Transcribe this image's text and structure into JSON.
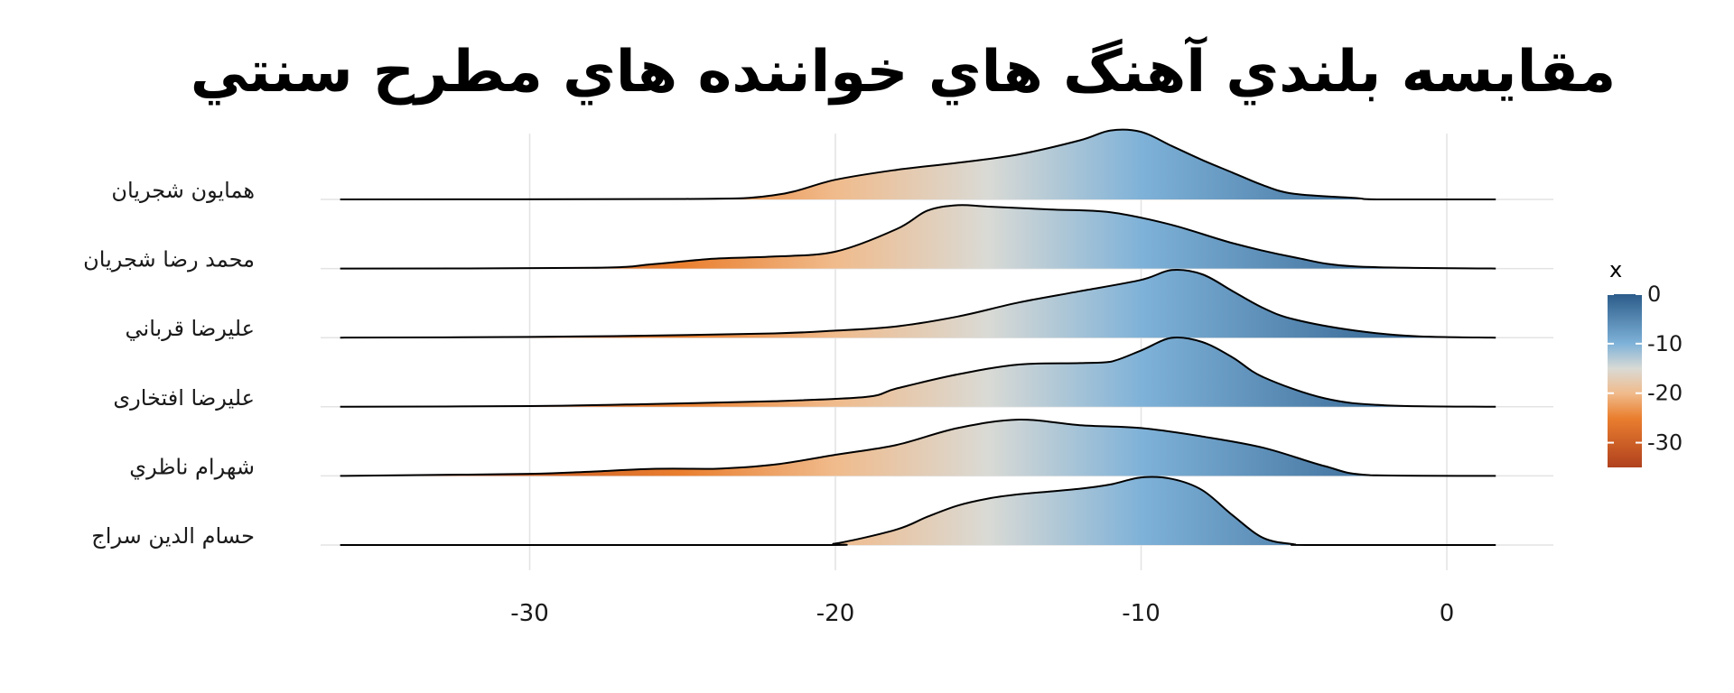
{
  "chart_data": {
    "type": "ridgeline",
    "title": "مقايسه بلندي آهنگ هاي خواننده هاي مطرح سنتي",
    "xlabel": "",
    "ylabel": "",
    "xlim": [
      -37,
      4
    ],
    "x_ticks": [
      -30,
      -20,
      -10,
      0
    ],
    "x_tick_labels": [
      "-30",
      "-20",
      "-10",
      "0"
    ],
    "grid": true,
    "legend": {
      "title": "x",
      "position": "right",
      "ticks": [
        0,
        -10,
        -20,
        -30
      ],
      "tick_labels": [
        "0",
        "-10",
        "-20",
        "-30"
      ],
      "range": [
        -35,
        0
      ],
      "colors": [
        {
          "value": 0,
          "color": "#2b5c8a"
        },
        {
          "value": -10,
          "color": "#7fb2d8"
        },
        {
          "value": -15,
          "color": "#d9dad5"
        },
        {
          "value": -20,
          "color": "#f0bb8c"
        },
        {
          "value": -25,
          "color": "#ea7f2f"
        },
        {
          "value": -35,
          "color": "#b0411e"
        }
      ]
    },
    "series": [
      {
        "name": "همايون شجريان",
        "x": [
          -36.2,
          -25,
          -22,
          -20,
          -18,
          -16,
          -14,
          -12,
          -11,
          -10,
          -9,
          -8,
          -7,
          -6,
          -5,
          -3,
          -2.2,
          1.6
        ],
        "density": [
          0,
          0.006,
          0.06,
          0.28,
          0.42,
          0.52,
          0.64,
          0.84,
          0.98,
          0.96,
          0.76,
          0.56,
          0.38,
          0.2,
          0.08,
          0.02,
          0,
          0
        ]
      },
      {
        "name": "محمد رضا شجريان",
        "x": [
          -36.2,
          -28,
          -26,
          -24,
          -22,
          -20,
          -18,
          -17,
          -16,
          -15,
          -13,
          -11,
          -9,
          -7,
          -5,
          -3,
          1.6
        ],
        "density": [
          0,
          0.01,
          0.06,
          0.14,
          0.17,
          0.24,
          0.56,
          0.82,
          0.9,
          0.88,
          0.84,
          0.8,
          0.62,
          0.36,
          0.16,
          0.03,
          0
        ]
      },
      {
        "name": "عليرضا قرباني",
        "x": [
          -36.2,
          -30,
          -26,
          -22,
          -20,
          -18,
          -16,
          -14,
          -12,
          -10,
          -9,
          -8,
          -7,
          -6,
          -5,
          -3,
          -1,
          1.6
        ],
        "density": [
          0,
          0.01,
          0.03,
          0.06,
          0.1,
          0.16,
          0.3,
          0.5,
          0.66,
          0.82,
          0.96,
          0.9,
          0.66,
          0.42,
          0.26,
          0.1,
          0.02,
          0
        ]
      },
      {
        "name": "عليرضا افتخارى",
        "x": [
          -36.2,
          -30,
          -26,
          -22,
          -19,
          -18,
          -16,
          -14,
          -12,
          -11,
          -10,
          -9,
          -8,
          -7,
          -6,
          -4,
          -2,
          1.6
        ],
        "density": [
          0,
          0.01,
          0.04,
          0.08,
          0.14,
          0.26,
          0.46,
          0.6,
          0.62,
          0.64,
          0.8,
          0.98,
          0.92,
          0.7,
          0.42,
          0.12,
          0.02,
          0
        ]
      },
      {
        "name": "شهرام ناظري",
        "x": [
          -36.2,
          -34,
          -30,
          -28,
          -26,
          -24,
          -22,
          -20,
          -18,
          -16,
          -14,
          -12,
          -10,
          -8,
          -6,
          -4,
          -2.5,
          1.6
        ],
        "density": [
          0,
          0.01,
          0.03,
          0.06,
          0.1,
          0.1,
          0.16,
          0.3,
          0.44,
          0.68,
          0.8,
          0.72,
          0.68,
          0.56,
          0.4,
          0.14,
          0.01,
          0
        ]
      },
      {
        "name": "حسام الدين سراج",
        "x": [
          -36.2,
          -21,
          -20,
          -18,
          -17,
          -16,
          -15,
          -14,
          -12,
          -11,
          -10,
          -9,
          -8,
          -7,
          -6,
          -5,
          -4.5,
          1.6
        ],
        "density": [
          0,
          0,
          0.02,
          0.22,
          0.4,
          0.56,
          0.66,
          0.72,
          0.8,
          0.86,
          0.96,
          0.94,
          0.78,
          0.42,
          0.1,
          0.01,
          0,
          0
        ]
      }
    ]
  }
}
